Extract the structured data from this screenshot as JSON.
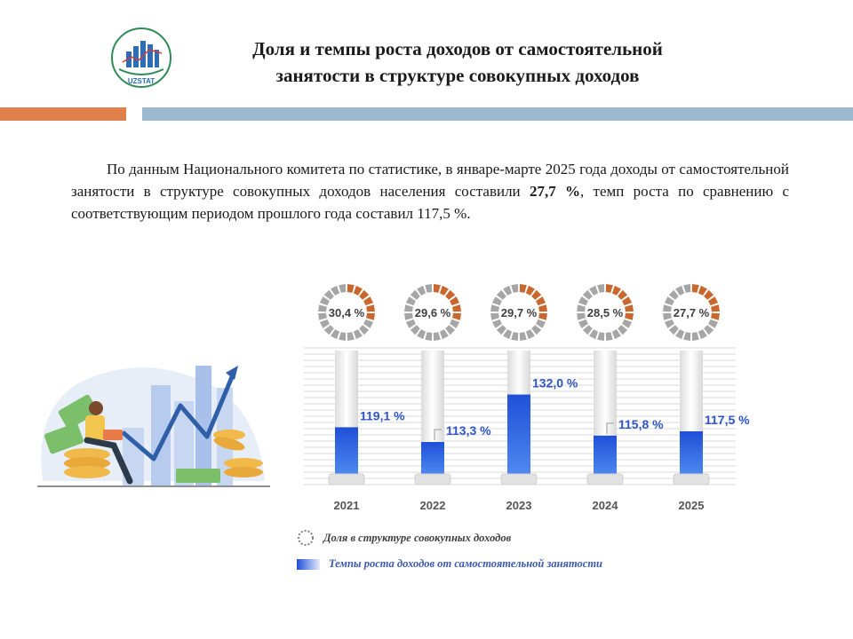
{
  "header": {
    "logo_text": "UZSTAT",
    "title_line1": "Доля и темпы роста доходов от самостоятельной",
    "title_line2": "занятости в структуре совокупных доходов"
  },
  "colors": {
    "accent_orange": "#e0804a",
    "accent_blue": "#9cb8d1",
    "growth_bar": "#1f4fd8",
    "share_ring": "#c8672e",
    "ring_rest": "#a6a6a6"
  },
  "paragraph": {
    "part1": "По данным Национального комитета по статистике, в январе-марте 2025 года доходы от самостоятельной занятости в структуре совокупных доходов населения составили ",
    "bold": "27,7 %",
    "part2": ", темп роста по сравнению с соответствующим периодом прошлого года составил 117,5 %."
  },
  "chart_data": {
    "type": "bar",
    "categories": [
      "2021",
      "2022",
      "2023",
      "2024",
      "2025"
    ],
    "series": [
      {
        "name": "Темпы роста доходов от самостоятельной занятости",
        "values": [
          119.1,
          113.3,
          132.0,
          115.8,
          117.5
        ],
        "labels": [
          "119,1 %",
          "113,3 %",
          "132,0 %",
          "115,8 %",
          "117,5 %"
        ]
      },
      {
        "name": "Доля в структуре совокупных доходов",
        "values": [
          30.4,
          29.6,
          29.7,
          28.5,
          27.7
        ],
        "labels": [
          "30,4 %",
          "29,6 %",
          "29,7 %",
          "28,5 %",
          "27,7 %"
        ]
      }
    ],
    "legend": [
      "Доля в структуре совокупных доходов",
      "Темпы роста доходов от самостоятельной занятости"
    ],
    "grid": true
  }
}
